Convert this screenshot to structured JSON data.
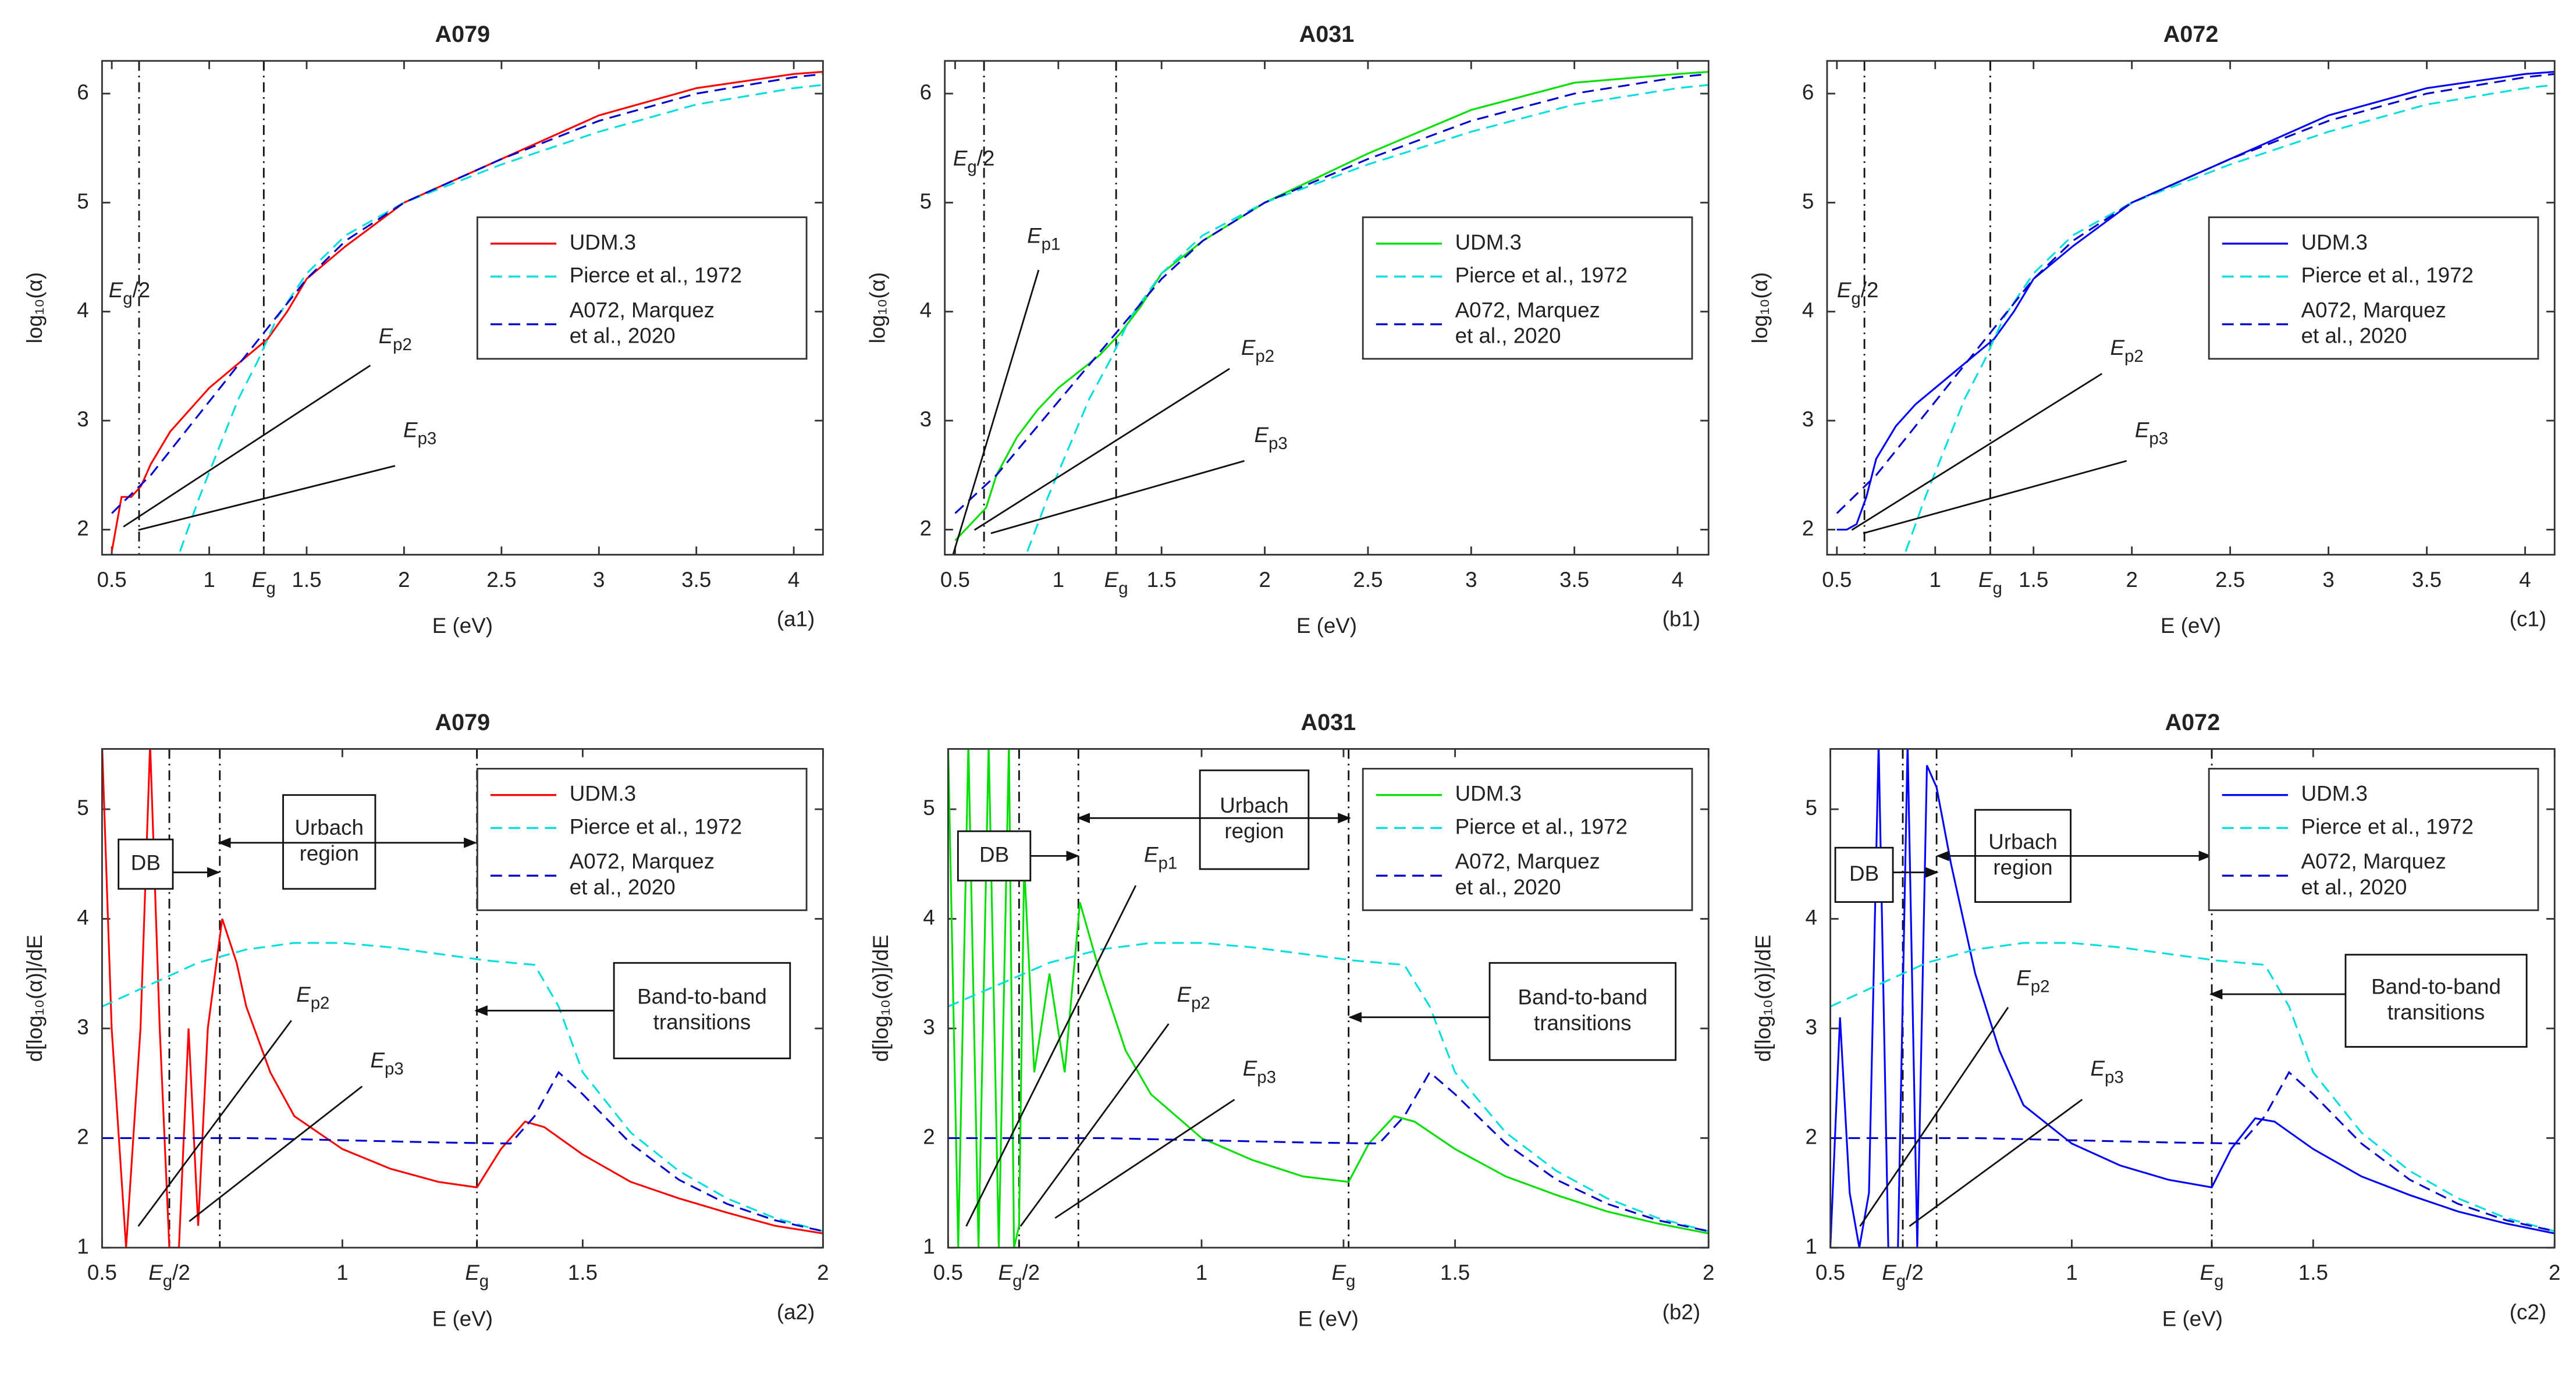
{
  "chart_data": [
    {
      "type": "line",
      "title": "A079",
      "xlabel": "E (eV)",
      "ylabel": "log₁₀(α)",
      "panel_label": "(a1)",
      "xlim": [
        0.45,
        4.15
      ],
      "xticks": [
        0.5,
        1,
        {
          "value": 1.28,
          "label": "Eg"
        },
        1.5,
        2,
        2.5,
        3,
        3.5,
        4
      ],
      "ylim": [
        1.77,
        6.3
      ],
      "yticks": [
        2,
        3,
        4,
        5,
        6
      ],
      "vlines": [
        0.64,
        1.28
      ],
      "legend": "center right",
      "annotations": [
        "Eg/2",
        "Ep2",
        "Ep3"
      ],
      "series": [
        {
          "name": "UDM.3",
          "color": "#ff0000",
          "dashed": false,
          "x": [
            0.5,
            0.55,
            0.6,
            0.65,
            0.7,
            0.8,
            0.9,
            1.0,
            1.1,
            1.2,
            1.3,
            1.4,
            1.5,
            1.7,
            2.0,
            2.5,
            3.0,
            3.5,
            4.0,
            4.15
          ],
          "values": [
            1.8,
            2.3,
            2.3,
            2.4,
            2.6,
            2.9,
            3.1,
            3.3,
            3.45,
            3.6,
            3.75,
            4.0,
            4.3,
            4.6,
            5.0,
            5.4,
            5.8,
            6.05,
            6.18,
            6.2
          ]
        },
        {
          "name": "Pierce et al., 1972",
          "color": "#00dede",
          "dashed": true,
          "x": [
            0.85,
            0.95,
            1.05,
            1.15,
            1.25,
            1.35,
            1.5,
            1.7,
            2.0,
            2.5,
            3.0,
            3.5,
            4.0,
            4.15
          ],
          "values": [
            1.8,
            2.3,
            2.75,
            3.2,
            3.55,
            3.95,
            4.35,
            4.7,
            5.0,
            5.35,
            5.65,
            5.9,
            6.05,
            6.08
          ]
        },
        {
          "name": "A072, Marquez\net al., 2020",
          "color": "#0000cc",
          "dashed": true,
          "x": [
            0.5,
            0.7,
            0.9,
            1.1,
            1.3,
            1.5,
            1.7,
            2.0,
            2.5,
            3.0,
            3.5,
            4.0,
            4.15
          ],
          "values": [
            2.15,
            2.5,
            2.95,
            3.4,
            3.85,
            4.3,
            4.65,
            5.0,
            5.4,
            5.75,
            6.0,
            6.15,
            6.18
          ]
        }
      ]
    },
    {
      "type": "line",
      "title": "A031",
      "xlabel": "E (eV)",
      "ylabel": "log₁₀(α)",
      "panel_label": "(b1)",
      "xlim": [
        0.45,
        4.15
      ],
      "xticks": [
        0.5,
        1,
        {
          "value": 1.28,
          "label": "Eg"
        },
        1.5,
        2,
        2.5,
        3,
        3.5,
        4
      ],
      "ylim": [
        1.77,
        6.3
      ],
      "yticks": [
        2,
        3,
        4,
        5,
        6
      ],
      "vlines": [
        0.64,
        1.28
      ],
      "legend": "center right",
      "annotations": [
        "Eg/2",
        "Ep1",
        "Ep2",
        "Ep3"
      ],
      "series": [
        {
          "name": "UDM.3",
          "color": "#00e000",
          "dashed": false,
          "x": [
            0.5,
            0.55,
            0.6,
            0.65,
            0.7,
            0.8,
            0.9,
            1.0,
            1.1,
            1.2,
            1.3,
            1.4,
            1.5,
            1.7,
            2.0,
            2.5,
            3.0,
            3.5,
            4.0,
            4.15
          ],
          "values": [
            1.9,
            2.0,
            2.1,
            2.2,
            2.5,
            2.85,
            3.1,
            3.3,
            3.45,
            3.6,
            3.8,
            4.05,
            4.35,
            4.65,
            5.0,
            5.45,
            5.85,
            6.1,
            6.18,
            6.2
          ]
        },
        {
          "name": "Pierce et al., 1972",
          "color": "#00dede",
          "dashed": true,
          "x": [
            0.85,
            0.95,
            1.05,
            1.15,
            1.25,
            1.35,
            1.5,
            1.7,
            2.0,
            2.5,
            3.0,
            3.5,
            4.0,
            4.15
          ],
          "values": [
            1.8,
            2.3,
            2.75,
            3.2,
            3.55,
            3.95,
            4.35,
            4.7,
            5.0,
            5.35,
            5.65,
            5.9,
            6.05,
            6.08
          ]
        },
        {
          "name": "A072, Marquez\net al., 2020",
          "color": "#0000cc",
          "dashed": true,
          "x": [
            0.5,
            0.7,
            0.9,
            1.1,
            1.3,
            1.5,
            1.7,
            2.0,
            2.5,
            3.0,
            3.5,
            4.0,
            4.15
          ],
          "values": [
            2.15,
            2.5,
            2.95,
            3.4,
            3.85,
            4.3,
            4.65,
            5.0,
            5.4,
            5.75,
            6.0,
            6.15,
            6.18
          ]
        }
      ]
    },
    {
      "type": "line",
      "title": "A072",
      "xlabel": "E (eV)",
      "ylabel": "log₁₀(α)",
      "panel_label": "(c1)",
      "xlim": [
        0.45,
        4.15
      ],
      "xticks": [
        0.5,
        1,
        {
          "value": 1.28,
          "label": "Eg"
        },
        1.5,
        2,
        2.5,
        3,
        3.5,
        4
      ],
      "ylim": [
        1.77,
        6.3
      ],
      "yticks": [
        2,
        3,
        4,
        5,
        6
      ],
      "vlines": [
        0.64,
        1.28
      ],
      "legend": "center right",
      "annotations": [
        "Eg/2",
        "Ep2",
        "Ep3"
      ],
      "series": [
        {
          "name": "UDM.3",
          "color": "#0000ff",
          "dashed": false,
          "x": [
            0.5,
            0.55,
            0.6,
            0.65,
            0.7,
            0.8,
            0.9,
            1.0,
            1.1,
            1.2,
            1.3,
            1.4,
            1.5,
            1.7,
            2.0,
            2.5,
            3.0,
            3.5,
            4.0,
            4.15
          ],
          "values": [
            2.0,
            2.0,
            2.05,
            2.3,
            2.65,
            2.95,
            3.15,
            3.3,
            3.45,
            3.6,
            3.75,
            4.0,
            4.3,
            4.6,
            5.0,
            5.4,
            5.8,
            6.05,
            6.18,
            6.2
          ]
        },
        {
          "name": "Pierce et al., 1972",
          "color": "#00dede",
          "dashed": true,
          "x": [
            0.85,
            0.95,
            1.05,
            1.15,
            1.25,
            1.35,
            1.5,
            1.7,
            2.0,
            2.5,
            3.0,
            3.5,
            4.0,
            4.15
          ],
          "values": [
            1.8,
            2.3,
            2.75,
            3.2,
            3.55,
            3.95,
            4.35,
            4.7,
            5.0,
            5.35,
            5.65,
            5.9,
            6.05,
            6.08
          ]
        },
        {
          "name": "A072, Marquez\net al., 2020",
          "color": "#0000cc",
          "dashed": true,
          "x": [
            0.5,
            0.7,
            0.9,
            1.1,
            1.3,
            1.5,
            1.7,
            2.0,
            2.5,
            3.0,
            3.5,
            4.0,
            4.15
          ],
          "values": [
            2.15,
            2.5,
            2.95,
            3.4,
            3.85,
            4.3,
            4.65,
            5.0,
            5.4,
            5.75,
            6.0,
            6.15,
            6.18
          ]
        }
      ]
    },
    {
      "type": "line",
      "title": "A079",
      "xlabel": "E (eV)",
      "ylabel": "d[log₁₀(α)]/dE",
      "panel_label": "(a2)",
      "xlim": [
        0.5,
        2
      ],
      "xticks": [
        0.5,
        {
          "value": 0.64,
          "label": "Eg/2"
        },
        1,
        {
          "value": 1.28,
          "label": "Eg"
        },
        1.5,
        2
      ],
      "ylim": [
        1,
        5.55
      ],
      "yticks": [
        1,
        2,
        3,
        4,
        5
      ],
      "vlines": [
        0.64,
        0.745,
        1.28
      ],
      "legend": "upper right",
      "annotations": [
        "DB",
        "Urbach\nregion",
        "Band-to-band\ntransitions",
        "Ep2",
        "Ep3"
      ],
      "series": [
        {
          "name": "UDM.3",
          "color": "#ff0000",
          "dashed": false,
          "x": [
            0.5,
            0.52,
            0.55,
            0.58,
            0.6,
            0.62,
            0.64,
            0.66,
            0.68,
            0.7,
            0.72,
            0.75,
            0.78,
            0.8,
            0.85,
            0.9,
            1.0,
            1.1,
            1.2,
            1.28,
            1.33,
            1.38,
            1.42,
            1.5,
            1.6,
            1.7,
            1.8,
            1.9,
            2.0
          ],
          "values": [
            5.6,
            3,
            1,
            3,
            5.6,
            3,
            1,
            1,
            3,
            1.2,
            3,
            4.0,
            3.6,
            3.2,
            2.6,
            2.2,
            1.9,
            1.72,
            1.6,
            1.55,
            1.9,
            2.15,
            2.1,
            1.85,
            1.6,
            1.45,
            1.32,
            1.2,
            1.13
          ]
        },
        {
          "name": "Pierce et al., 1972",
          "color": "#00dede",
          "dashed": true,
          "x": [
            0.5,
            0.6,
            0.7,
            0.8,
            0.9,
            1.0,
            1.1,
            1.2,
            1.3,
            1.4,
            1.45,
            1.5,
            1.6,
            1.7,
            1.8,
            1.9,
            2.0
          ],
          "values": [
            3.2,
            3.4,
            3.6,
            3.72,
            3.78,
            3.78,
            3.74,
            3.68,
            3.62,
            3.58,
            3.2,
            2.6,
            2.05,
            1.7,
            1.45,
            1.27,
            1.15
          ]
        },
        {
          "name": "A072, Marquez\net al., 2020",
          "color": "#0000cc",
          "dashed": true,
          "x": [
            0.5,
            0.8,
            1.0,
            1.2,
            1.35,
            1.4,
            1.45,
            1.5,
            1.6,
            1.7,
            1.8,
            1.9,
            2.0
          ],
          "values": [
            2,
            2,
            1.98,
            1.96,
            1.95,
            2.2,
            2.6,
            2.4,
            1.95,
            1.62,
            1.4,
            1.25,
            1.15
          ]
        }
      ]
    },
    {
      "type": "line",
      "title": "A031",
      "xlabel": "E (eV)",
      "ylabel": "d[log₁₀(α)]/dE",
      "panel_label": "(b2)",
      "xlim": [
        0.5,
        2
      ],
      "xticks": [
        0.5,
        {
          "value": 0.64,
          "label": "Eg/2"
        },
        1,
        {
          "value": 1.28,
          "label": "Eg"
        },
        1.5,
        2
      ],
      "ylim": [
        1,
        5.55
      ],
      "yticks": [
        1,
        2,
        3,
        4,
        5
      ],
      "vlines": [
        0.64,
        0.757,
        1.29
      ],
      "legend": "upper right",
      "annotations": [
        "DB",
        "Urbach\nregion",
        "Band-to-band\ntransitions",
        "Ep1",
        "Ep2",
        "Ep3"
      ],
      "series": [
        {
          "name": "UDM.3",
          "color": "#00e000",
          "dashed": false,
          "x": [
            0.5,
            0.52,
            0.54,
            0.56,
            0.58,
            0.6,
            0.62,
            0.63,
            0.64,
            0.65,
            0.67,
            0.7,
            0.73,
            0.76,
            0.8,
            0.85,
            0.9,
            1.0,
            1.1,
            1.2,
            1.29,
            1.33,
            1.38,
            1.42,
            1.5,
            1.6,
            1.7,
            1.8,
            1.9,
            2.0
          ],
          "values": [
            5.6,
            1,
            5.6,
            1,
            5.6,
            1,
            5.6,
            1,
            1.2,
            4.5,
            2.6,
            3.5,
            2.6,
            4.15,
            3.5,
            2.8,
            2.4,
            2.0,
            1.8,
            1.65,
            1.6,
            1.95,
            2.2,
            2.15,
            1.9,
            1.65,
            1.48,
            1.33,
            1.22,
            1.13
          ]
        },
        {
          "name": "Pierce et al., 1972",
          "color": "#00dede",
          "dashed": true,
          "x": [
            0.5,
            0.6,
            0.7,
            0.8,
            0.9,
            1.0,
            1.1,
            1.2,
            1.3,
            1.4,
            1.45,
            1.5,
            1.6,
            1.7,
            1.8,
            1.9,
            2.0
          ],
          "values": [
            3.2,
            3.4,
            3.6,
            3.72,
            3.78,
            3.78,
            3.74,
            3.68,
            3.62,
            3.58,
            3.2,
            2.6,
            2.05,
            1.7,
            1.45,
            1.27,
            1.15
          ]
        },
        {
          "name": "A072, Marquez\net al., 2020",
          "color": "#0000cc",
          "dashed": true,
          "x": [
            0.5,
            0.8,
            1.0,
            1.2,
            1.35,
            1.4,
            1.45,
            1.5,
            1.6,
            1.7,
            1.8,
            1.9,
            2.0
          ],
          "values": [
            2,
            2,
            1.98,
            1.96,
            1.95,
            2.2,
            2.6,
            2.4,
            1.95,
            1.62,
            1.4,
            1.25,
            1.15
          ]
        }
      ]
    },
    {
      "type": "line",
      "title": "A072",
      "xlabel": "E (eV)",
      "ylabel": "d[log₁₀(α)]/dE",
      "panel_label": "(c2)",
      "xlim": [
        0.5,
        2
      ],
      "xticks": [
        0.5,
        {
          "value": 0.65,
          "label": "Eg/2"
        },
        1,
        {
          "value": 1.29,
          "label": "Eg"
        },
        1.5,
        2
      ],
      "ylim": [
        1,
        5.55
      ],
      "yticks": [
        1,
        2,
        3,
        4,
        5
      ],
      "vlines": [
        0.65,
        0.72,
        1.29
      ],
      "legend": "upper right",
      "annotations": [
        "DB",
        "Urbach\nregion",
        "Band-to-band\ntransitions",
        "Ep2",
        "Ep3"
      ],
      "series": [
        {
          "name": "UDM.3",
          "color": "#0000ff",
          "dashed": false,
          "x": [
            0.5,
            0.52,
            0.54,
            0.56,
            0.58,
            0.6,
            0.62,
            0.64,
            0.66,
            0.68,
            0.7,
            0.72,
            0.75,
            0.8,
            0.85,
            0.9,
            1.0,
            1.1,
            1.2,
            1.29,
            1.33,
            1.38,
            1.42,
            1.5,
            1.6,
            1.7,
            1.8,
            1.9,
            2.0
          ],
          "values": [
            1,
            3.1,
            1.5,
            1,
            1.5,
            5.6,
            1,
            1,
            5.6,
            1,
            5.4,
            5.2,
            4.5,
            3.5,
            2.8,
            2.3,
            1.95,
            1.75,
            1.62,
            1.55,
            1.9,
            2.18,
            2.15,
            1.9,
            1.65,
            1.48,
            1.33,
            1.22,
            1.13
          ]
        },
        {
          "name": "Pierce et al., 1972",
          "color": "#00dede",
          "dashed": true,
          "x": [
            0.5,
            0.6,
            0.7,
            0.8,
            0.9,
            1.0,
            1.1,
            1.2,
            1.3,
            1.4,
            1.45,
            1.5,
            1.6,
            1.7,
            1.8,
            1.9,
            2.0
          ],
          "values": [
            3.2,
            3.4,
            3.6,
            3.72,
            3.78,
            3.78,
            3.74,
            3.68,
            3.62,
            3.58,
            3.2,
            2.6,
            2.05,
            1.7,
            1.45,
            1.27,
            1.15
          ]
        },
        {
          "name": "A072, Marquez\net al., 2020",
          "color": "#0000cc",
          "dashed": true,
          "x": [
            0.5,
            0.8,
            1.0,
            1.2,
            1.35,
            1.4,
            1.45,
            1.5,
            1.6,
            1.7,
            1.8,
            1.9,
            2.0
          ],
          "values": [
            2,
            2,
            1.98,
            1.96,
            1.95,
            2.2,
            2.6,
            2.4,
            1.95,
            1.62,
            1.4,
            1.25,
            1.15
          ]
        }
      ]
    }
  ]
}
